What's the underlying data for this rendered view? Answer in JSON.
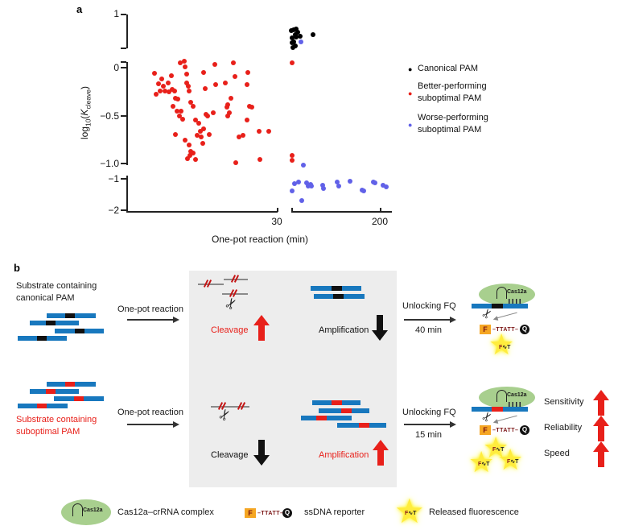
{
  "panel_a": {
    "label": "a",
    "y_axis_label": {
      "p_log": "log",
      "p_sub": "10",
      "p_open": "(",
      "p_k": "K",
      "p_ksub": "cleave",
      "p_close": ")"
    },
    "x_axis_label": "One-pot reaction (min)",
    "y_ticks": {
      "p1": "1",
      "z": "0",
      "m05": "−0.5",
      "m10": "−1.0",
      "m1": "−1",
      "m2": "−2"
    },
    "x_ticks": {
      "t30": "30",
      "t200": "200"
    },
    "legend": [
      {
        "label_line1": "Canonical PAM",
        "label_line2": "",
        "color": "#000000"
      },
      {
        "label_line1": "Better-performing",
        "label_line2": "suboptimal PAM",
        "color": "#e8201a"
      },
      {
        "label_line1": "Worse-performing",
        "label_line2": "suboptimal PAM",
        "color": "#6161e8"
      }
    ]
  },
  "chart_data": {
    "type": "scatter",
    "title": "",
    "xlabel": "One-pot reaction (min)",
    "ylabel": "log10(Kcleave)",
    "x_axis": {
      "broken": true,
      "left_range": [
        0,
        30
      ],
      "right_range": [
        35,
        220
      ],
      "tick_labels": [
        "30",
        "200"
      ]
    },
    "y_axis": {
      "broken": true,
      "segments": [
        {
          "range": [
            0.35,
            1
          ],
          "ticks": [
            "1"
          ]
        },
        {
          "range": [
            -1.05,
            0.1
          ],
          "ticks": [
            "0",
            "-0.5",
            "-1.0"
          ]
        },
        {
          "range": [
            -2,
            -1
          ],
          "ticks": [
            "-1",
            "-2"
          ]
        }
      ]
    },
    "legend_position": "right",
    "grid": false,
    "series": [
      {
        "name": "Canonical PAM",
        "color": "#000000",
        "points": [
          [
            35,
            0.69
          ],
          [
            39,
            0.7
          ],
          [
            44,
            0.72
          ],
          [
            47,
            0.66
          ],
          [
            42,
            0.61
          ],
          [
            36,
            0.55
          ],
          [
            44,
            0.57
          ],
          [
            39,
            0.47
          ],
          [
            36,
            0.46
          ],
          [
            42,
            0.4
          ],
          [
            38,
            0.36
          ],
          [
            51,
            0.58
          ],
          [
            75,
            0.61
          ]
        ]
      },
      {
        "name": "Better-performing suboptimal PAM",
        "color": "#e8201a",
        "points": [
          [
            5.6,
            -0.06
          ],
          [
            7,
            -0.12
          ],
          [
            6.4,
            -0.17
          ],
          [
            7.3,
            -0.19
          ],
          [
            6.7,
            -0.24
          ],
          [
            5.9,
            -0.28
          ],
          [
            7.7,
            -0.24
          ],
          [
            8.3,
            -0.16
          ],
          [
            8.9,
            -0.08
          ],
          [
            9.1,
            -0.23
          ],
          [
            8.5,
            -0.25
          ],
          [
            9.6,
            -0.24
          ],
          [
            9.7,
            -0.32
          ],
          [
            10.2,
            -0.33
          ],
          [
            9.3,
            -0.4
          ],
          [
            10,
            -0.45
          ],
          [
            10.8,
            -0.45
          ],
          [
            10.5,
            -0.5
          ],
          [
            11.2,
            -0.54
          ],
          [
            9.7,
            -0.7
          ],
          [
            11.6,
            -0.76
          ],
          [
            12.4,
            -0.81
          ],
          [
            12.8,
            -0.87
          ],
          [
            13.2,
            -0.89
          ],
          [
            12.6,
            -0.92
          ],
          [
            12.1,
            -0.95
          ],
          [
            13.7,
            -0.96
          ],
          [
            10.7,
            0.05
          ],
          [
            11.5,
            0.07
          ],
          [
            11.6,
            0.01
          ],
          [
            12,
            -0.07
          ],
          [
            12.4,
            -0.24
          ],
          [
            12.8,
            -0.36
          ],
          [
            13.2,
            -0.4
          ],
          [
            12,
            -0.16
          ],
          [
            12.3,
            -0.19
          ],
          [
            13.7,
            -0.55
          ],
          [
            14.4,
            -0.58
          ],
          [
            14.7,
            -0.66
          ],
          [
            14,
            -0.71
          ],
          [
            14.8,
            -0.72
          ],
          [
            15.2,
            -0.79
          ],
          [
            15.3,
            -0.64
          ],
          [
            15.8,
            -0.49
          ],
          [
            16.1,
            -0.5
          ],
          [
            16.4,
            -0.7
          ],
          [
            17.2,
            -0.47
          ],
          [
            17.5,
            0.03
          ],
          [
            17.7,
            -0.18
          ],
          [
            15.3,
            -0.05
          ],
          [
            15.6,
            -0.22
          ],
          [
            19.6,
            -0.16
          ],
          [
            19.9,
            -0.41
          ],
          [
            20.1,
            -0.39
          ],
          [
            20.4,
            -0.47
          ],
          [
            20.1,
            -0.5
          ],
          [
            20.7,
            -0.32
          ],
          [
            21.2,
            0.05
          ],
          [
            21.5,
            -0.09
          ],
          [
            21.7,
            -0.99
          ],
          [
            22.3,
            -0.72
          ],
          [
            23.1,
            -0.71
          ],
          [
            23.9,
            -0.18
          ],
          [
            24.1,
            -0.05
          ],
          [
            24.4,
            -0.4
          ],
          [
            24.9,
            -0.41
          ],
          [
            26.3,
            -0.66
          ],
          [
            26.5,
            -0.96
          ],
          [
            28.2,
            -0.66
          ],
          [
            23.9,
            -0.55
          ],
          [
            37,
            0.05
          ],
          [
            37,
            -0.92
          ],
          [
            36,
            -0.97
          ]
        ]
      },
      {
        "name": "Worse-performing suboptimal PAM",
        "color": "#6161e8",
        "points": [
          [
            53,
            0.47
          ],
          [
            57,
            -1.02
          ],
          [
            41,
            -1.15
          ],
          [
            48,
            -1.1
          ],
          [
            36,
            -1.37
          ],
          [
            63,
            -1.12
          ],
          [
            66,
            -1.22
          ],
          [
            71,
            -1.17
          ],
          [
            72,
            -1.22
          ],
          [
            54,
            -1.67
          ],
          [
            93,
            -1.2
          ],
          [
            95,
            -1.3
          ],
          [
            120,
            -1.1
          ],
          [
            122,
            -1.22
          ],
          [
            144,
            -1.07
          ],
          [
            166,
            -1.35
          ],
          [
            169,
            -1.37
          ],
          [
            186,
            -1.1
          ],
          [
            190,
            -1.12
          ],
          [
            205,
            -1.2
          ],
          [
            210,
            -1.25
          ]
        ]
      }
    ]
  },
  "panel_b": {
    "label": "b",
    "row1": {
      "substrate_line1": "Substrate containing",
      "substrate_line2": "canonical PAM",
      "substrate_color": "#1a1a1a",
      "reaction_label": "One-pot reaction",
      "cleavage_label": "Cleavage",
      "cleavage_color": "#e8201a",
      "cleavage_arrow": "up",
      "amplification_label": "Amplification",
      "amplification_color": "#111111",
      "amplification_arrow": "down",
      "unlocking_label": "Unlocking FQ",
      "time_label": "40 min"
    },
    "row2": {
      "substrate_line1": "Substrate containing",
      "substrate_line2": "suboptimal PAM",
      "substrate_color": "#e8201a",
      "reaction_label": "One-pot reaction",
      "cleavage_label": "Cleavage",
      "cleavage_color": "#111111",
      "cleavage_arrow": "down",
      "amplification_label": "Amplification",
      "amplification_color": "#e8201a",
      "amplification_arrow": "up",
      "unlocking_label": "Unlocking FQ",
      "time_label": "15 min"
    },
    "outcomes": [
      {
        "label": "Sensitivity",
        "arrow": "up",
        "color": "#e8201a"
      },
      {
        "label": "Reliability",
        "arrow": "up",
        "color": "#e8201a"
      },
      {
        "label": "Speed",
        "arrow": "up",
        "color": "#e8201a"
      }
    ],
    "cas12a_label": "Cas12a",
    "reporter": {
      "f": "F",
      "seq": "–TTATT–",
      "q": "Q"
    },
    "released_tag": {
      "f": "F",
      "sep": "∿",
      "t": "T"
    },
    "legend": [
      {
        "label": "Cas12a–crRNA complex"
      },
      {
        "label": "ssDNA reporter"
      },
      {
        "label": "Released fluorescence"
      }
    ]
  },
  "icons": {
    "scissors": "✂",
    "star": "★",
    "bullet": "●"
  },
  "colors": {
    "red": "#e8201a",
    "blue_bar": "#1878be",
    "blue_dot": "#6161e8",
    "green_blob": "#a8cf8e",
    "orange_f": "#f5a623",
    "yellow_star": "#ffec3d",
    "gray_box": "#ededed"
  }
}
